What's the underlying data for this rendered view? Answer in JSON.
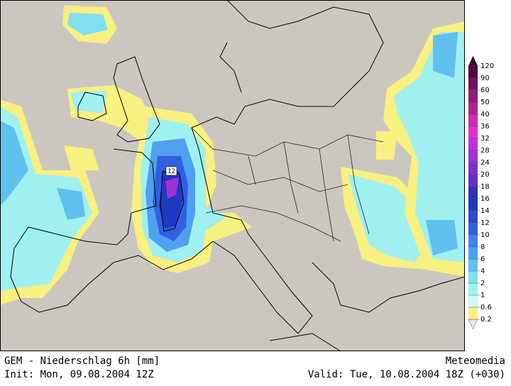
{
  "map": {
    "title": "GEM - Niederschlag 6h [mm]",
    "source": "Meteomedia",
    "init": "Init: Mon, 09.08.2004 12Z",
    "valid": "Valid: Tue, 10.08.2004 18Z (+030)",
    "contour_label": "12"
  },
  "legend": {
    "levels": [
      0.2,
      0.6,
      1,
      2,
      4,
      6,
      8,
      10,
      12,
      14,
      16,
      18,
      20,
      24,
      28,
      32,
      36,
      40,
      50,
      60,
      90,
      120
    ],
    "colors": [
      "#e8e8e0",
      "#f8f080",
      "#d0f8f8",
      "#a0f0f0",
      "#80e0f0",
      "#60c0f0",
      "#50a0f0",
      "#4080f0",
      "#3060e0",
      "#2848d0",
      "#2038c0",
      "#3030b0",
      "#6030c0",
      "#8030c8",
      "#a030d8",
      "#c030e0",
      "#e030d0",
      "#d028b0",
      "#b02090",
      "#901878",
      "#701060",
      "#500a40",
      "#300828"
    ]
  }
}
